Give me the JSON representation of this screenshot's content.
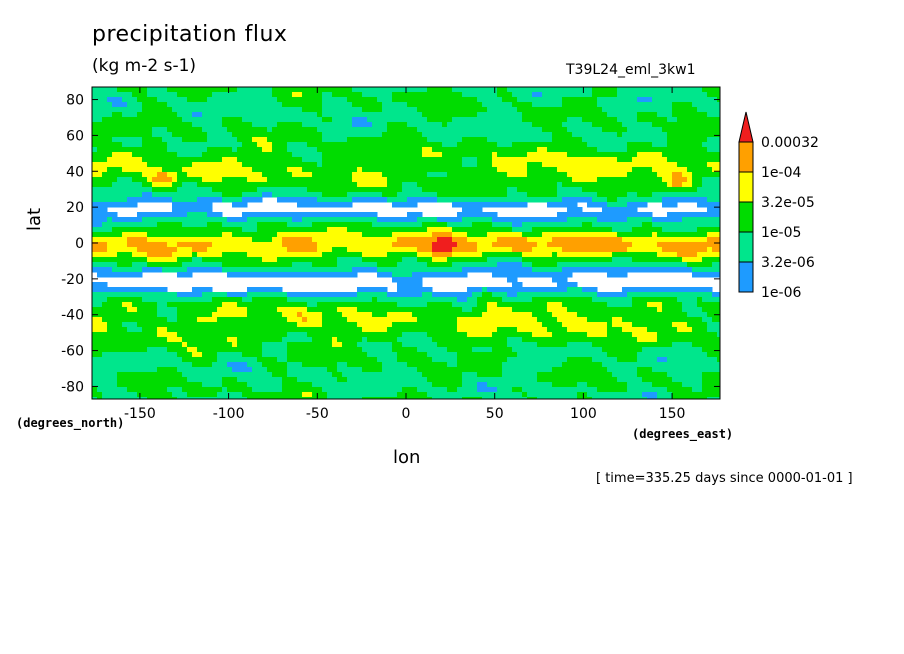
{
  "chart_data": {
    "type": "heatmap",
    "title": "precipitation flux",
    "units_label": "(kg m-2 s-1)",
    "run_name": "T39L24_eml_3kw1",
    "xlabel": "lon",
    "ylabel": "lat",
    "x_units": "(degrees_east)",
    "y_units": "(degrees_north)",
    "time_label": "[ time=335.25 days since 0000-01-01 ]",
    "xlim": [
      -177,
      177
    ],
    "ylim": [
      -87,
      87
    ],
    "x_ticks": [
      -150,
      -100,
      -50,
      0,
      50,
      100,
      150
    ],
    "x_tick_labels": [
      "-150",
      "-100",
      "-50",
      "0",
      "50",
      "100",
      "150"
    ],
    "y_ticks": [
      80,
      60,
      40,
      20,
      0,
      -20,
      -40,
      -60,
      -80
    ],
    "y_tick_labels": [
      "80",
      "60",
      "40",
      "20",
      "0",
      "-20",
      "-40",
      "-60",
      "-80"
    ],
    "levels": [
      {
        "label": "1e-06",
        "value": 1e-06,
        "color": "#1e9bff"
      },
      {
        "label": "3.2e-06",
        "value": 3.2e-06,
        "color": "#00e68c"
      },
      {
        "label": "1e-05",
        "value": 1e-05,
        "color": "#00dc00"
      },
      {
        "label": "3.2e-05",
        "value": 3.2e-05,
        "color": "#ffff00"
      },
      {
        "label": "1e-04",
        "value": 0.0001,
        "color": "#ffa000"
      },
      {
        "label": "0.00032",
        "value": 0.00032,
        "color": "#f01e1e"
      }
    ],
    "background_color": "#ffffff"
  }
}
